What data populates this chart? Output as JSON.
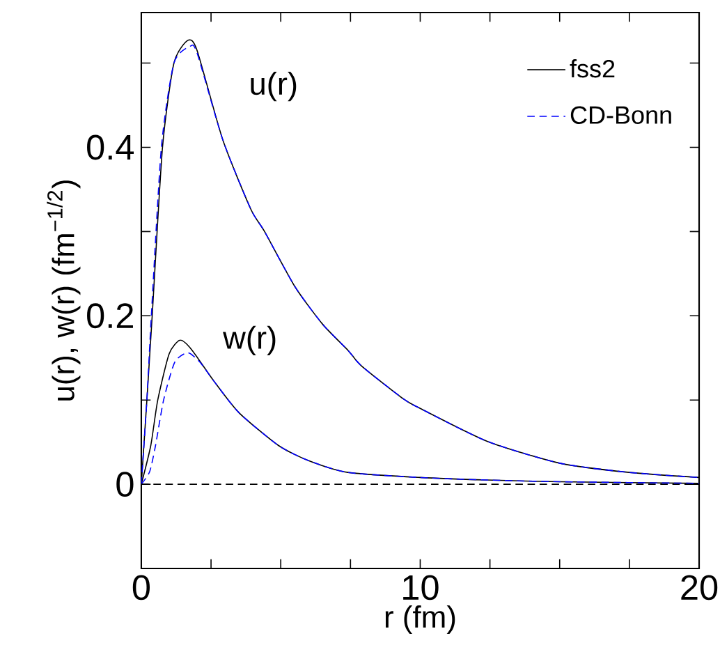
{
  "chart_data": {
    "type": "line",
    "xlabel": "r (fm)",
    "ylabel": "u(r), w(r) (fm$^{−1/2}$)",
    "xlim": [
      0,
      20
    ],
    "ylim": [
      -0.1,
      0.56
    ],
    "xticks": [
      0,
      {
        "value": 2.5,
        "label": null
      },
      {
        "value": 5,
        "label": null
      },
      {
        "value": 7.5,
        "label": null
      },
      10,
      {
        "value": 12.5,
        "label": null
      },
      {
        "value": 15,
        "label": null
      },
      {
        "value": 17.5,
        "label": null
      },
      20
    ],
    "yticks": [
      {
        "value": -0.1,
        "label": null
      },
      0,
      {
        "value": 0.1,
        "label": null
      },
      0.2,
      {
        "value": 0.3,
        "label": null
      },
      0.4,
      {
        "value": 0.5,
        "label": null
      }
    ],
    "legend": "top right",
    "grid": false,
    "marker": "none",
    "series": [
      {
        "name": "fss2",
        "color": "#000000",
        "line_style": "solid",
        "x": [
          0,
          0.2,
          0.39,
          0.76,
          1.17,
          1.67,
          2.0,
          2.92,
          3.92,
          4.42,
          5.5,
          6.5,
          7.41,
          7.91,
          9.41,
          10,
          12.4,
          15,
          17.5,
          20
        ],
        "values": [
          0,
          0.1,
          0.2,
          0.4,
          0.5,
          0.527,
          0.515,
          0.409,
          0.327,
          0.3,
          0.235,
          0.19,
          0.159,
          0.14,
          0.101,
          0.09,
          0.051,
          0.025,
          0.014,
          0.008
        ]
      },
      {
        "color": "#000000",
        "line_style": "solid",
        "x": [
          0,
          0.34,
          0.59,
          1.0,
          1.39,
          1.8,
          2.59,
          3.5,
          4.92,
          6,
          7.41,
          10,
          12.4,
          15,
          20
        ],
        "values": [
          0,
          0.046,
          0.1,
          0.155,
          0.171,
          0.16,
          0.123,
          0.085,
          0.046,
          0.028,
          0.014,
          0.008,
          0.005,
          0.003,
          0.001
        ]
      },
      {
        "name": "CD-Bonn",
        "color": "#0000ff",
        "line_style": "dashed",
        "x": [
          0,
          0.2,
          0.36,
          0.72,
          1.17,
          1.75,
          2.0,
          2.92,
          3.92,
          4.42,
          5.5,
          6.5,
          7.41,
          7.91,
          9.41,
          10,
          12.4,
          15,
          17.5,
          20
        ],
        "values": [
          0,
          0.1,
          0.2,
          0.4,
          0.5,
          0.52,
          0.512,
          0.409,
          0.327,
          0.3,
          0.235,
          0.19,
          0.159,
          0.14,
          0.101,
          0.09,
          0.051,
          0.025,
          0.014,
          0.008
        ]
      },
      {
        "color": "#0000ff",
        "line_style": "dashed",
        "x": [
          0,
          0.3,
          0.51,
          0.8,
          1.2,
          1.67,
          2.1,
          2.59,
          3.5,
          4.92,
          6,
          7.41,
          10,
          12.4,
          15,
          20
        ],
        "values": [
          0,
          0.015,
          0.046,
          0.1,
          0.145,
          0.156,
          0.145,
          0.123,
          0.085,
          0.046,
          0.028,
          0.014,
          0.008,
          0.005,
          0.003,
          0.001
        ]
      }
    ],
    "ref_lines": [
      {
        "axis": "y",
        "value": 0,
        "color": "#000000",
        "line_style": "dashed"
      }
    ],
    "annotations": [
      "u(r)",
      "w(r)"
    ]
  }
}
